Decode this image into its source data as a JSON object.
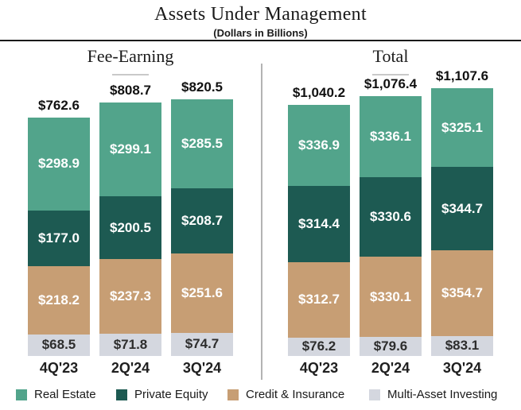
{
  "header": {
    "title": "Assets Under Management",
    "subtitle": "(Dollars in Billions)"
  },
  "legend": [
    {
      "label": "Real Estate",
      "color": "#52A48B"
    },
    {
      "label": "Private Equity",
      "color": "#1D5A52"
    },
    {
      "label": "Credit & Insurance",
      "color": "#C79E74"
    },
    {
      "label": "Multi-Asset Investing",
      "color": "#D4D7DF"
    }
  ],
  "chart_data": {
    "type": "bar",
    "stacked": true,
    "unit": "USD billions",
    "title": "Assets Under Management",
    "subtitle": "(Dollars in Billions)",
    "legend_position": "bottom",
    "groups": [
      {
        "title": "Fee-Earning",
        "categories": [
          "4Q'23",
          "2Q'24",
          "3Q'24"
        ],
        "totals": [
          762.6,
          808.7,
          820.5
        ],
        "total_labels": [
          "$762.6",
          "$808.7",
          "$820.5"
        ],
        "series": [
          {
            "name": "Real Estate",
            "color": "#52A48B",
            "label_color": "#FFFFFF",
            "values": [
              298.9,
              299.1,
              285.5
            ]
          },
          {
            "name": "Private Equity",
            "color": "#1D5A52",
            "label_color": "#FFFFFF",
            "values": [
              177.0,
              200.5,
              208.7
            ]
          },
          {
            "name": "Credit & Insurance",
            "color": "#C79E74",
            "label_color": "#FFFFFF",
            "values": [
              218.2,
              237.3,
              251.6
            ]
          },
          {
            "name": "Multi-Asset Investing",
            "color": "#D4D7DF",
            "label_color": "#2D2D2D",
            "values": [
              68.5,
              71.8,
              74.7
            ]
          }
        ]
      },
      {
        "title": "Total",
        "categories": [
          "4Q'23",
          "2Q'24",
          "3Q'24"
        ],
        "totals": [
          1040.2,
          1076.4,
          1107.6
        ],
        "total_labels": [
          "$1,040.2",
          "$1,076.4",
          "$1,107.6"
        ],
        "series": [
          {
            "name": "Real Estate",
            "color": "#52A48B",
            "label_color": "#FFFFFF",
            "values": [
              336.9,
              336.1,
              325.1
            ]
          },
          {
            "name": "Private Equity",
            "color": "#1D5A52",
            "label_color": "#FFFFFF",
            "values": [
              314.4,
              330.6,
              344.7
            ]
          },
          {
            "name": "Credit & Insurance",
            "color": "#C79E74",
            "label_color": "#FFFFFF",
            "values": [
              312.7,
              330.1,
              354.7
            ]
          },
          {
            "name": "Multi-Asset Investing",
            "color": "#D4D7DF",
            "label_color": "#2D2D2D",
            "values": [
              76.2,
              79.6,
              83.1
            ]
          }
        ]
      }
    ]
  }
}
